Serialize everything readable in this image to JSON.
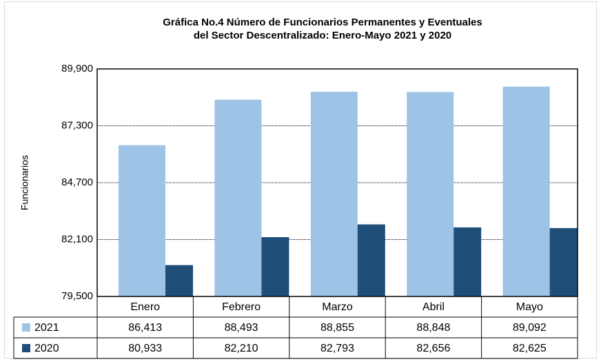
{
  "chart_data": {
    "type": "bar",
    "title": [
      "Gráfica No.4  Número de Funcionarios Permanentes y Eventuales",
      "del Sector Descentralizado: Enero-Mayo 2021 y 2020"
    ],
    "y_label": "Funcionarios",
    "categories": [
      "Enero",
      "Febrero",
      "Marzo",
      "Abril",
      "Mayo"
    ],
    "series": [
      {
        "name": "2021",
        "color": "#9dc3e6",
        "values": [
          86413,
          88493,
          88855,
          88848,
          89092
        ],
        "value_labels": [
          "86,413",
          "88,493",
          "88,855",
          "88,848",
          "89,092"
        ]
      },
      {
        "name": "2020",
        "color": "#1f4e79",
        "values": [
          80933,
          82210,
          82793,
          82656,
          82625
        ],
        "value_labels": [
          "80,933",
          "82,210",
          "82,793",
          "82,656",
          "82,625"
        ]
      }
    ],
    "ylim": [
      79500,
      89900
    ],
    "yticks": [
      {
        "value": 79500,
        "label": "79,500"
      },
      {
        "value": 82100,
        "label": "82,100"
      },
      {
        "value": 84700,
        "label": "84,700"
      },
      {
        "value": 87300,
        "label": "87,300"
      },
      {
        "value": 89900,
        "label": "89,900"
      }
    ],
    "grid": true
  }
}
